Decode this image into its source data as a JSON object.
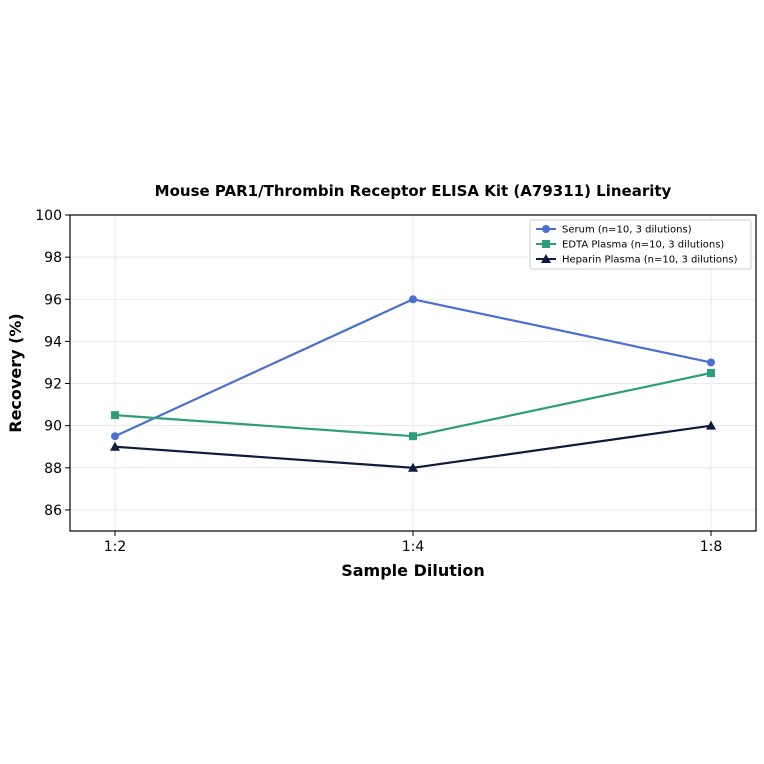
{
  "chart_data": {
    "type": "line",
    "title": "Mouse PAR1/Thrombin Receptor ELISA Kit (A79311) Linearity",
    "xlabel": "Sample Dilution",
    "ylabel": "Recovery (%)",
    "categories": [
      "1:2",
      "1:4",
      "1:8"
    ],
    "ylim": [
      85,
      100
    ],
    "yticks": [
      86,
      88,
      90,
      92,
      94,
      96,
      98,
      100
    ],
    "grid": true,
    "legend_position": "top-right",
    "series": [
      {
        "name": "Serum (n=10, 3 dilutions)",
        "values": [
          89.5,
          96.0,
          93.0
        ],
        "color": "#4a6fd0",
        "marker": "circle"
      },
      {
        "name": "EDTA Plasma (n=10, 3 dilutions)",
        "values": [
          90.5,
          89.5,
          92.5
        ],
        "color": "#2e9e7a",
        "marker": "square"
      },
      {
        "name": "Heparin Plasma (n=10, 3 dilutions)",
        "values": [
          89.0,
          88.0,
          90.0
        ],
        "color": "#0f1b3d",
        "marker": "triangle"
      }
    ]
  }
}
